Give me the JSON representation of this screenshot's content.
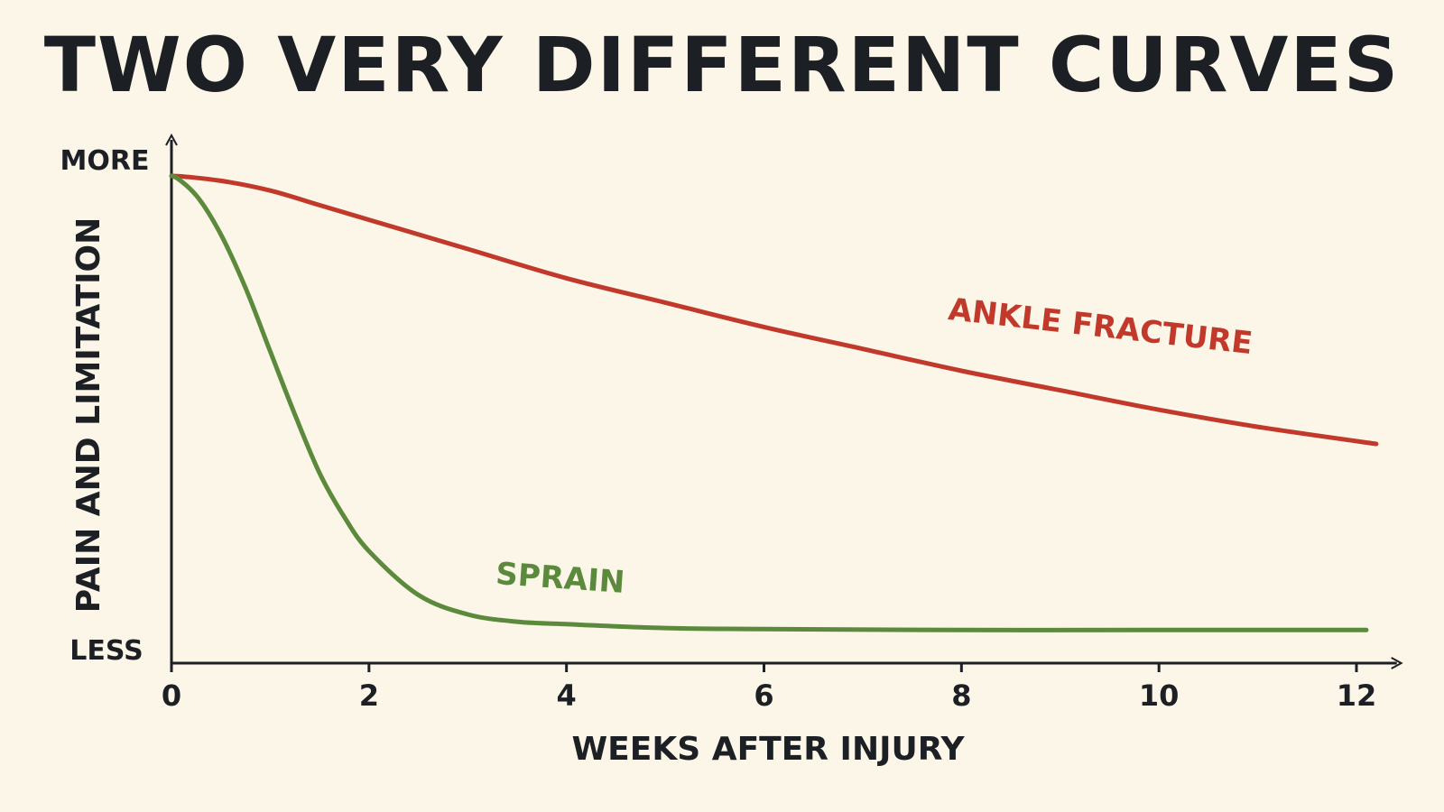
{
  "colors": {
    "background": "#fcf6e8",
    "text": "#1c1f24",
    "fracture": "#c0392b",
    "sprain": "#5b8a3c"
  },
  "chart_data": {
    "type": "line",
    "title": "TWO VERY DIFFERENT CURVES",
    "xlabel": "WEEKS AFTER INJURY",
    "ylabel": "PAIN AND LIMITATION",
    "y_top_label": "MORE",
    "y_bottom_label": "LESS",
    "xlim": [
      0,
      12.5
    ],
    "ylim": [
      0,
      1
    ],
    "x_ticks": [
      0,
      2,
      4,
      6,
      8,
      10,
      12
    ],
    "grid": false,
    "legend": "inline labels",
    "series": [
      {
        "name": "ANKLE FRACTURE",
        "color": "#c0392b",
        "x": [
          0,
          0.5,
          1,
          1.5,
          2,
          3,
          4,
          5,
          6,
          7,
          8,
          9,
          10,
          11,
          12.2
        ],
        "y": [
          1.0,
          0.99,
          0.97,
          0.94,
          0.91,
          0.85,
          0.79,
          0.74,
          0.69,
          0.645,
          0.6,
          0.56,
          0.52,
          0.485,
          0.45
        ]
      },
      {
        "name": "SPRAIN",
        "color": "#5b8a3c",
        "x": [
          0,
          0.25,
          0.5,
          0.75,
          1,
          1.25,
          1.5,
          1.75,
          2,
          2.5,
          3,
          3.5,
          4,
          5,
          6,
          8,
          10,
          12.1
        ],
        "y": [
          1.0,
          0.96,
          0.88,
          0.77,
          0.64,
          0.51,
          0.39,
          0.3,
          0.23,
          0.14,
          0.1,
          0.085,
          0.08,
          0.072,
          0.07,
          0.068,
          0.068,
          0.068
        ]
      }
    ]
  }
}
